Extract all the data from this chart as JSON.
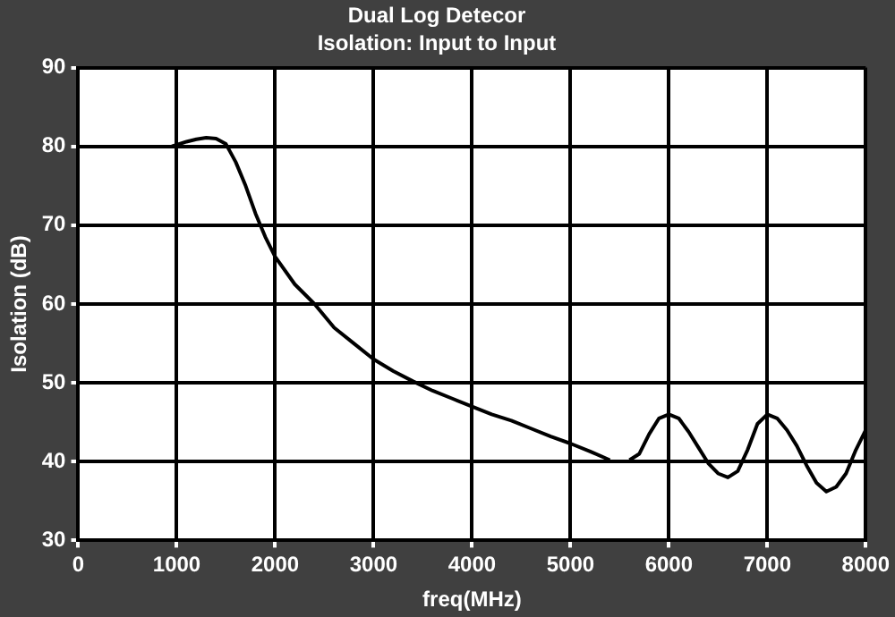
{
  "chart_data": {
    "type": "line",
    "title": "Dual Log Detecor",
    "subtitle": "Isolation: Input to Input",
    "xlabel": "freq(MHz)",
    "ylabel": "Isolation (dB)",
    "x": [
      950,
      1000,
      1100,
      1200,
      1300,
      1400,
      1500,
      1600,
      1700,
      1800,
      1900,
      2000,
      2200,
      2400,
      2600,
      2800,
      3000,
      3200,
      3400,
      3600,
      3800,
      4000,
      4200,
      4400,
      4600,
      4800,
      5000,
      5200,
      5400,
      5500,
      5600,
      5700,
      5800,
      5900,
      6000,
      6100,
      6200,
      6300,
      6400,
      6500,
      6600,
      6700,
      6800,
      6900,
      7000,
      7100,
      7200,
      7300,
      7400,
      7500,
      7600,
      7700,
      7800,
      7900,
      8000
    ],
    "series": [
      {
        "color": "#000000",
        "values": [
          80,
          80.2,
          80.6,
          80.9,
          81.1,
          81,
          80.3,
          78,
          75,
          71.5,
          68.5,
          66,
          62.5,
          60,
          57,
          55,
          53,
          51.5,
          50.2,
          49,
          48,
          47,
          46,
          45.2,
          44.2,
          43.2,
          42.3,
          41.3,
          40.2,
          null,
          40.2,
          41,
          43.5,
          45.5,
          46,
          45.5,
          43.8,
          41.8,
          39.8,
          38.5,
          38,
          38.8,
          41.5,
          44.8,
          46,
          45.5,
          44,
          42,
          39.5,
          37.3,
          36.2,
          36.8,
          38.5,
          41.5,
          44
        ]
      }
    ],
    "xlim": [
      0,
      8000
    ],
    "xticks": [
      0,
      1000,
      2000,
      3000,
      4000,
      5000,
      6000,
      7000,
      8000
    ],
    "ylim": [
      30,
      90
    ],
    "yticks": [
      30,
      40,
      50,
      60,
      70,
      80,
      90
    ],
    "grid": true,
    "legend": false,
    "marker": "none",
    "line_style": "solid"
  }
}
